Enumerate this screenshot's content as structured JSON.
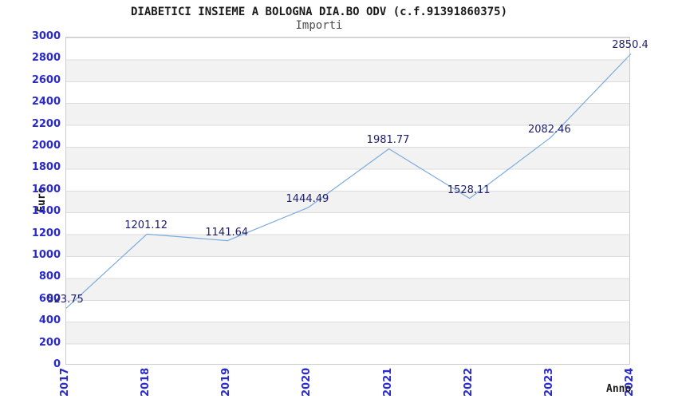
{
  "chart_data": {
    "type": "line",
    "title": "DIABETICI INSIEME A BOLOGNA DIA.BO ODV (c.f.91391860375)",
    "subtitle": "Importi",
    "xlabel": "Anno",
    "ylabel": "Euro",
    "x": [
      "2017",
      "2018",
      "2019",
      "2020",
      "2021",
      "2022",
      "2023",
      "2024"
    ],
    "values": [
      523.75,
      1201.12,
      1141.64,
      1444.49,
      1981.77,
      1528.11,
      2082.46,
      2850.4
    ],
    "point_labels": [
      "523.75",
      "1201.12",
      "1141.64",
      "1444.49",
      "1981.77",
      "1528.11",
      "2082.46",
      "2850.4"
    ],
    "ylim": [
      0,
      3000
    ],
    "ytick_step": 200,
    "legend": "none",
    "grid": "horizontal-bands",
    "colors": {
      "line": "#7aabdf",
      "tick_labels": "#2929cc",
      "point_labels": "#20206a",
      "band_light": "#ffffff",
      "band_dark": "#f2f2f2",
      "gridline": "#dcdcdc",
      "plot_border": "#cccccc",
      "title": "#1a1a1a",
      "subtitle": "#4d4d4d"
    }
  }
}
